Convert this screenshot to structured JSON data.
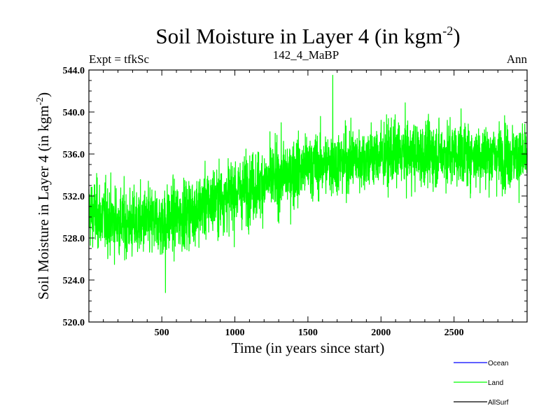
{
  "chart_data": {
    "type": "line",
    "title": "Soil Moisture in Layer 4 (in kgm",
    "title_sup": "-2",
    "title_end": ")",
    "subtitle_left": "Expt = tfkSc",
    "subtitle_center": "142_4_MaBP",
    "subtitle_right": "Ann",
    "xlabel": "Time (in years since start)",
    "ylabel": "Soil Moisture in Layer 4 (in kgm",
    "ylabel_sup": "-2",
    "ylabel_end": ")",
    "xlim": [
      1,
      3000
    ],
    "ylim": [
      520.0,
      544.0
    ],
    "xticks": [
      500,
      1000,
      1500,
      2000,
      2500
    ],
    "xtick_labels": [
      "500",
      "1000",
      "1500",
      "2000",
      "2500"
    ],
    "yticks": [
      520,
      524,
      528,
      532,
      536,
      540,
      544
    ],
    "ytick_labels": [
      "520.0",
      "524.0",
      "528.0",
      "532.0",
      "536.0",
      "540.0",
      "544.0"
    ],
    "grid": false,
    "legend_position": "bottom-right",
    "series": [
      {
        "name": "Land",
        "color": "#00ff00",
        "x": [
          1,
          100,
          200,
          300,
          400,
          500,
          600,
          700,
          800,
          900,
          1000,
          1100,
          1200,
          1300,
          1400,
          1500,
          1600,
          1700,
          1800,
          1900,
          2000,
          2100,
          2200,
          2300,
          2400,
          2500,
          2600,
          2700,
          2800,
          2900,
          3000
        ],
        "values": [
          530.5,
          530.0,
          529.5,
          529.3,
          529.5,
          529.5,
          530.0,
          530.5,
          531.2,
          531.8,
          532.3,
          532.8,
          533.3,
          533.8,
          534.3,
          534.8,
          535.0,
          535.2,
          535.4,
          535.6,
          535.8,
          536.0,
          536.0,
          535.9,
          536.0,
          536.0,
          536.0,
          535.8,
          535.9,
          535.8,
          535.5
        ],
        "spread": [
          1.6,
          1.6,
          1.6,
          1.6,
          1.6,
          1.6,
          1.6,
          1.6,
          1.6,
          1.6,
          1.6,
          1.6,
          1.6,
          1.6,
          1.6,
          1.5,
          1.5,
          1.5,
          1.5,
          1.5,
          1.5,
          1.5,
          1.5,
          1.5,
          1.5,
          1.5,
          1.5,
          1.5,
          1.5,
          1.5,
          1.5
        ],
        "observed_max": 543.5,
        "observed_max_at": 1670,
        "observed_min": 522.8,
        "observed_min_at": 525
      }
    ],
    "legend": [
      {
        "name": "Ocean",
        "color": "#0000ff"
      },
      {
        "name": "Land",
        "color": "#00ff00"
      },
      {
        "name": "AllSurf",
        "color": "#000000"
      }
    ]
  }
}
